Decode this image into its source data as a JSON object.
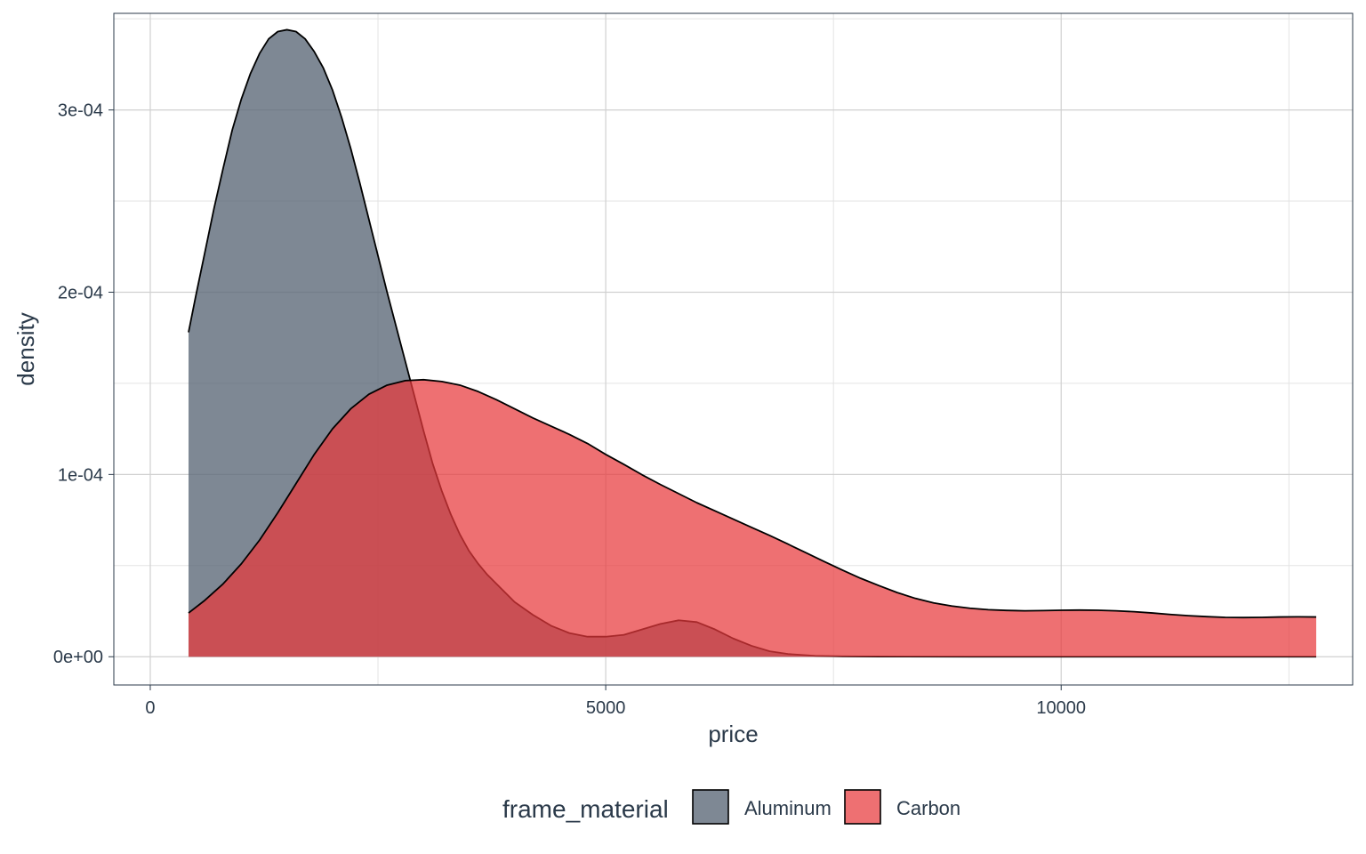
{
  "chart_data": {
    "type": "area",
    "chart_kind": "density",
    "xlabel": "price",
    "ylabel": "density",
    "xlim": [
      -400,
      13200
    ],
    "ylim": [
      -1.55e-05,
      0.000353
    ],
    "x_ticks": [
      0,
      5000,
      10000
    ],
    "x_tick_labels": [
      "0",
      "5000",
      "10000"
    ],
    "y_ticks": [
      0,
      0.0001,
      0.0002,
      0.0003
    ],
    "y_tick_labels": [
      "0e+00",
      "1e-04",
      "2e-04",
      "3e-04"
    ],
    "grid": true,
    "legend": {
      "title": "frame_material",
      "position": "bottom"
    },
    "series": [
      {
        "name": "Aluminum",
        "color": "#5a6676",
        "opacity": 0.78,
        "x": [
          420,
          500,
          600,
          700,
          800,
          900,
          1000,
          1100,
          1200,
          1300,
          1400,
          1500,
          1600,
          1700,
          1800,
          1900,
          2000,
          2100,
          2200,
          2300,
          2400,
          2500,
          2600,
          2700,
          2800,
          2900,
          3000,
          3100,
          3200,
          3300,
          3400,
          3500,
          3600,
          3700,
          3800,
          3900,
          4000,
          4200,
          4400,
          4600,
          4800,
          5000,
          5200,
          5400,
          5600,
          5800,
          6000,
          6200,
          6400,
          6600,
          6800,
          7000,
          7300,
          7600,
          8000,
          9000,
          10000,
          11000,
          12000,
          12800
        ],
        "values": [
          0.000178,
          0.000198,
          0.000222,
          0.000246,
          0.000268,
          0.000289,
          0.000306,
          0.00032,
          0.000331,
          0.000339,
          0.000343,
          0.000344,
          0.000343,
          0.000339,
          0.000332,
          0.000323,
          0.000311,
          0.000296,
          0.000279,
          0.00026,
          0.00024,
          0.00022,
          0.0002,
          0.000181,
          0.000162,
          0.000143,
          0.000124,
          0.000106,
          9.1e-05,
          7.8e-05,
          6.7e-05,
          5.8e-05,
          5.1e-05,
          4.5e-05,
          4e-05,
          3.5e-05,
          3e-05,
          2.3e-05,
          1.7e-05,
          1.3e-05,
          1.1e-05,
          1.1e-05,
          1.2e-05,
          1.5e-05,
          1.8e-05,
          2e-05,
          1.9e-05,
          1.5e-05,
          1e-05,
          6e-06,
          3e-06,
          1.5e-06,
          5e-07,
          2e-07,
          1e-07,
          0,
          0,
          0,
          0,
          0
        ]
      },
      {
        "name": "Carbon",
        "color": "#e8393c",
        "opacity": 0.72,
        "x": [
          420,
          600,
          800,
          1000,
          1200,
          1400,
          1600,
          1800,
          2000,
          2200,
          2400,
          2600,
          2800,
          3000,
          3200,
          3400,
          3600,
          3800,
          4000,
          4200,
          4400,
          4600,
          4800,
          5000,
          5200,
          5400,
          5600,
          5800,
          6000,
          6200,
          6400,
          6600,
          6800,
          7000,
          7200,
          7400,
          7600,
          7800,
          8000,
          8200,
          8400,
          8600,
          8800,
          9000,
          9200,
          9400,
          9600,
          9800,
          10000,
          10200,
          10400,
          10600,
          10800,
          11000,
          11200,
          11400,
          11600,
          11800,
          12000,
          12200,
          12400,
          12600,
          12800
        ],
        "values": [
          2.4e-05,
          3.1e-05,
          4e-05,
          5.1e-05,
          6.4e-05,
          7.9e-05,
          9.5e-05,
          0.000111,
          0.000125,
          0.000136,
          0.000144,
          0.000149,
          0.0001515,
          0.000152,
          0.000151,
          0.000149,
          0.0001455,
          0.000141,
          0.000136,
          0.000131,
          0.0001265,
          0.000122,
          0.000117,
          0.000111,
          0.0001055,
          9.98e-05,
          9.45e-05,
          8.95e-05,
          8.45e-05,
          8e-05,
          7.55e-05,
          7.1e-05,
          6.65e-05,
          6.18e-05,
          5.7e-05,
          5.22e-05,
          4.75e-05,
          4.3e-05,
          3.9e-05,
          3.52e-05,
          3.2e-05,
          2.95e-05,
          2.78e-05,
          2.66e-05,
          2.58e-05,
          2.54e-05,
          2.52e-05,
          2.53e-05,
          2.55e-05,
          2.56e-05,
          2.55e-05,
          2.52e-05,
          2.47e-05,
          2.4e-05,
          2.32e-05,
          2.25e-05,
          2.2e-05,
          2.16e-05,
          2.15e-05,
          2.16e-05,
          2.18e-05,
          2.19e-05,
          2.18e-05
        ]
      }
    ]
  }
}
